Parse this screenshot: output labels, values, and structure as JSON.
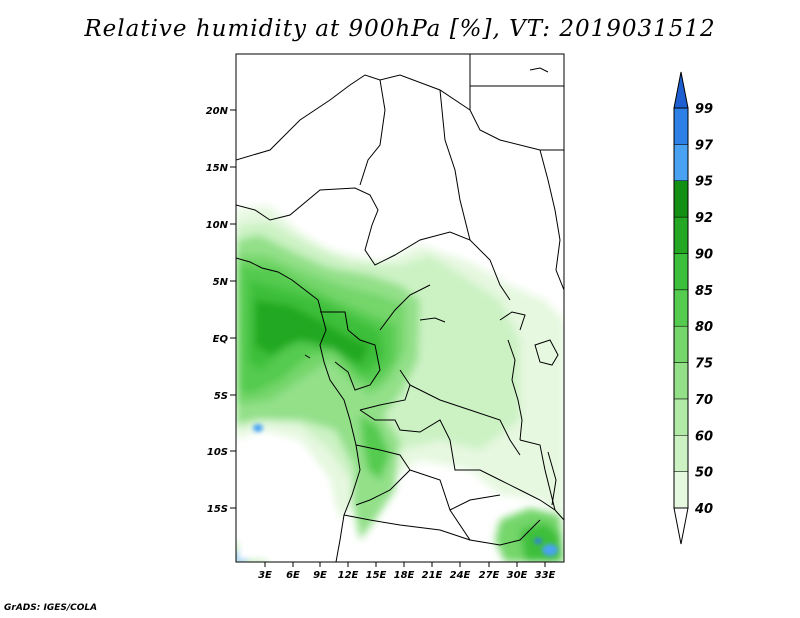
{
  "title": "Relative humidity at 900hPa [%], VT: 2019031512",
  "credit": "GrADS: IGES/COLA",
  "map": {
    "lat_ticks": [
      "20N",
      "15N",
      "10N",
      "5N",
      "EQ",
      "5S",
      "10S",
      "15S"
    ],
    "lon_ticks": [
      "3E",
      "6E",
      "9E",
      "12E",
      "15E",
      "18E",
      "21E",
      "24E",
      "27E",
      "30E",
      "33E"
    ]
  },
  "colorbar": {
    "levels": [
      "40",
      "50",
      "60",
      "70",
      "75",
      "80",
      "85",
      "90",
      "92",
      "95",
      "97",
      "99"
    ],
    "colors": [
      "#ffffff",
      "#e6f8e0",
      "#ccf2c4",
      "#b0eaa6",
      "#93e089",
      "#74d66b",
      "#55cb4f",
      "#3cbf3a",
      "#24a824",
      "#138f13",
      "#4aa3f2",
      "#2d80e6",
      "#1d5fd0"
    ]
  }
}
